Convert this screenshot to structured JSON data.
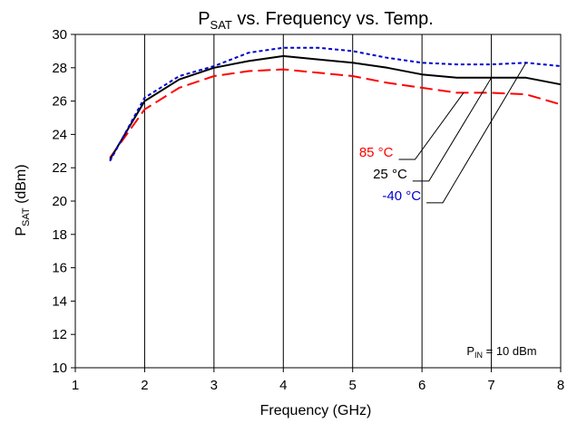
{
  "chart_data": {
    "type": "line",
    "title": {
      "main": "P",
      "sub": "SAT",
      "rest": " vs. Frequency vs. Temp."
    },
    "xlabel": "Frequency (GHz)",
    "ylabel": {
      "main": "P",
      "sub": "SAT",
      "rest": " (dBm)"
    },
    "xlim": [
      1,
      8
    ],
    "ylim": [
      10,
      30
    ],
    "xticks": [
      "1",
      "2",
      "3",
      "4",
      "5",
      "6",
      "7",
      "8"
    ],
    "yticks": [
      "10",
      "12",
      "14",
      "16",
      "18",
      "20",
      "22",
      "24",
      "26",
      "28",
      "30"
    ],
    "grid": "vertical",
    "annotation": {
      "main": "P",
      "sub": "IN",
      "rest": " = 10 dBm"
    },
    "series": [
      {
        "name": "85 °C",
        "color": "#ff0000",
        "dash": "long-dash",
        "x": [
          1.5,
          2,
          2.5,
          3,
          3.5,
          4,
          4.5,
          5,
          5.5,
          6,
          6.5,
          7,
          7.5,
          8
        ],
        "y": [
          22.6,
          25.5,
          26.8,
          27.5,
          27.8,
          27.9,
          27.7,
          27.5,
          27.1,
          26.8,
          26.5,
          26.5,
          26.4,
          25.8
        ]
      },
      {
        "name": "25 °C",
        "color": "#000000",
        "dash": "solid",
        "x": [
          1.5,
          2,
          2.5,
          3,
          3.5,
          4,
          4.5,
          5,
          5.5,
          6,
          6.5,
          7,
          7.5,
          8
        ],
        "y": [
          22.5,
          26.0,
          27.3,
          28.0,
          28.4,
          28.7,
          28.5,
          28.3,
          28.0,
          27.6,
          27.4,
          27.4,
          27.4,
          27.0
        ]
      },
      {
        "name": "-40 °C",
        "color": "#0000cc",
        "dash": "short-dash",
        "x": [
          1.5,
          2,
          2.5,
          3,
          3.5,
          4,
          4.5,
          5,
          5.5,
          6,
          6.5,
          7,
          7.5,
          8
        ],
        "y": [
          22.4,
          26.2,
          27.5,
          28.1,
          28.9,
          29.2,
          29.2,
          29.0,
          28.6,
          28.3,
          28.2,
          28.2,
          28.3,
          28.1
        ]
      }
    ],
    "legend_callouts": [
      {
        "series": "85 °C",
        "line_start": [
          5.9,
          22.5
        ],
        "line_end": [
          6.6,
          26.5
        ]
      },
      {
        "series": "25 °C",
        "line_start": [
          6.1,
          21.2
        ],
        "line_end": [
          7.0,
          27.4
        ]
      },
      {
        "series": "-40 °C",
        "line_start": [
          6.3,
          19.9
        ],
        "line_end": [
          7.5,
          28.3
        ]
      }
    ]
  }
}
